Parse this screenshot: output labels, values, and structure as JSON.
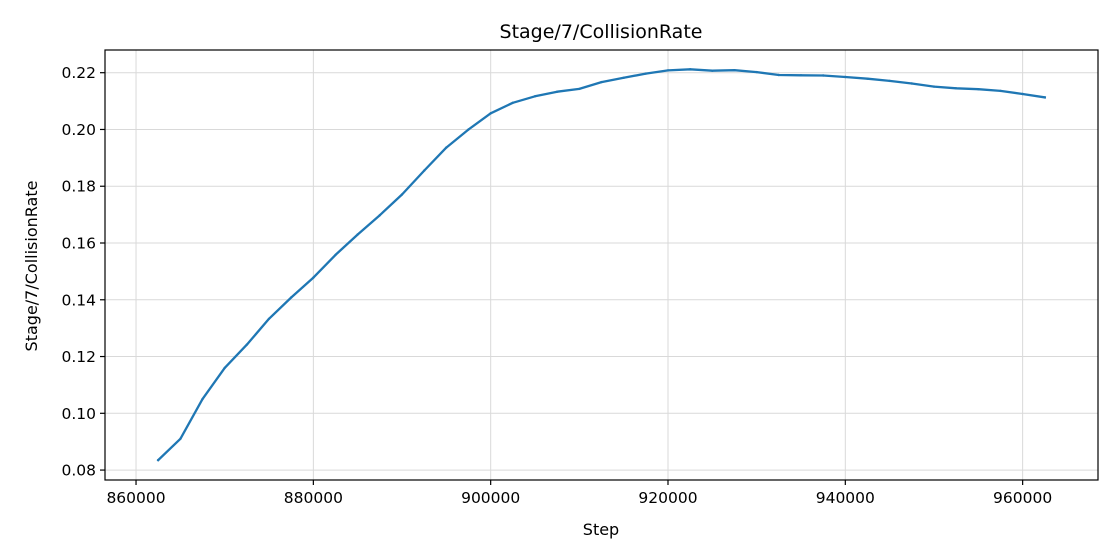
{
  "chart_data": {
    "type": "line",
    "title": "Stage/7/CollisionRate",
    "xlabel": "Step",
    "ylabel": "Stage/7/CollisionRate",
    "xlim": [
      856500,
      968500
    ],
    "ylim": [
      0.0765,
      0.228
    ],
    "xticks": [
      860000,
      880000,
      900000,
      920000,
      940000,
      960000
    ],
    "xtick_labels": [
      "860000",
      "880000",
      "900000",
      "920000",
      "940000",
      "960000"
    ],
    "yticks": [
      0.08,
      0.1,
      0.12,
      0.14,
      0.16,
      0.18,
      0.2,
      0.22
    ],
    "ytick_labels": [
      "0.08",
      "0.10",
      "0.12",
      "0.14",
      "0.16",
      "0.18",
      "0.20",
      "0.22"
    ],
    "grid": true,
    "series": [
      {
        "color": "#1f77b4",
        "x": [
          862500,
          865000,
          867500,
          870000,
          872500,
          875000,
          877500,
          880000,
          882500,
          885000,
          887500,
          890000,
          892500,
          895000,
          897500,
          900000,
          902500,
          905000,
          907500,
          910000,
          912500,
          915000,
          917500,
          920000,
          922500,
          925000,
          927500,
          930000,
          932500,
          935000,
          937500,
          940000,
          942500,
          945000,
          947500,
          950000,
          952500,
          955000,
          957500,
          960000,
          962500
        ],
        "y": [
          0.0835,
          0.091,
          0.105,
          0.116,
          0.1242,
          0.1333,
          0.1408,
          0.1478,
          0.1558,
          0.163,
          0.1698,
          0.1771,
          0.1855,
          0.1936,
          0.2,
          0.2057,
          0.2094,
          0.2117,
          0.2133,
          0.2143,
          0.2167,
          0.2182,
          0.2197,
          0.2208,
          0.2212,
          0.2207,
          0.2209,
          0.2202,
          0.2192,
          0.2191,
          0.219,
          0.2185,
          0.2179,
          0.2171,
          0.2162,
          0.2151,
          0.2145,
          0.2142,
          0.2136,
          0.2125,
          0.2113
        ]
      }
    ]
  }
}
